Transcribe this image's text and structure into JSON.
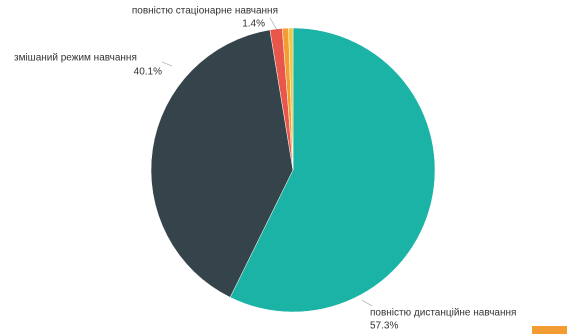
{
  "chart_data": {
    "type": "pie",
    "categories": [
      "повністю дистанційне навчання",
      "змішаний режим навчання",
      "повністю стаціонарне навчання",
      null,
      null
    ],
    "values": [
      57.3,
      40.1,
      1.4,
      0.7,
      0.5
    ],
    "value_labels": [
      "57.3%",
      "40.1%",
      "1.4%",
      null,
      null
    ],
    "colors": [
      "#1ab3a6",
      "#35434a",
      "#e8574a",
      "#f39c34",
      "#f2c744"
    ]
  }
}
